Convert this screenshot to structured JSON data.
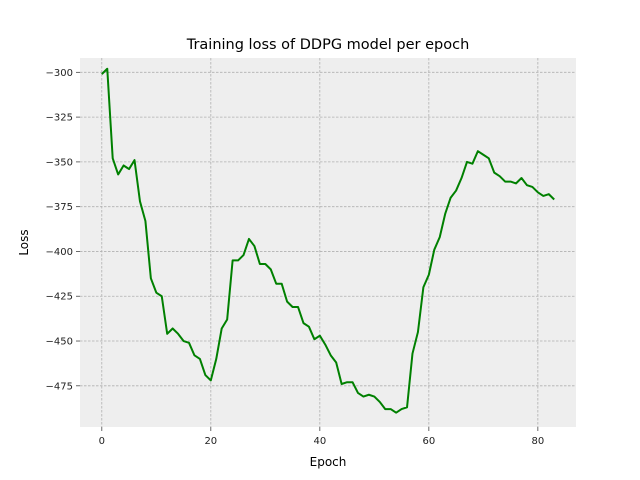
{
  "chart_data": {
    "type": "line",
    "title": "Training loss of DDPG model per epoch",
    "xlabel": "Epoch",
    "ylabel": "Loss",
    "xlim": [
      -4,
      87
    ],
    "ylim": [
      -498,
      -292
    ],
    "xticks": [
      0,
      20,
      40,
      60,
      80
    ],
    "yticks": [
      -300,
      -325,
      -350,
      -375,
      -400,
      -425,
      -450,
      -475
    ],
    "grid": true,
    "colors": {
      "line": "#008000",
      "plot_bg": "#eeeeee",
      "grid": "#b0b0b0"
    },
    "series": [
      {
        "values": [
          -301,
          -298,
          -348,
          -357,
          -352,
          -354,
          -349,
          -372,
          -383,
          -415,
          -423,
          -425,
          -446,
          -443,
          -446,
          -450,
          -451,
          -458,
          -460,
          -469,
          -472,
          -460,
          -443,
          -438,
          -405,
          -405,
          -402,
          -393,
          -397,
          -407,
          -407,
          -410,
          -418,
          -418,
          -428,
          -431,
          -431,
          -440,
          -442,
          -449,
          -447,
          -452,
          -458,
          -462,
          -474,
          -473,
          -473,
          -479,
          -481,
          -480,
          -481,
          -484,
          -488,
          -488,
          -490,
          -488,
          -487,
          -457,
          -445,
          -420,
          -413,
          -399,
          -392,
          -379,
          -370,
          -366,
          -359,
          -350,
          -351,
          -344,
          -346,
          -348,
          -356,
          -358,
          -361,
          -361,
          -362,
          -359,
          -363,
          -364,
          -367,
          -369,
          -368,
          -371
        ]
      }
    ]
  }
}
